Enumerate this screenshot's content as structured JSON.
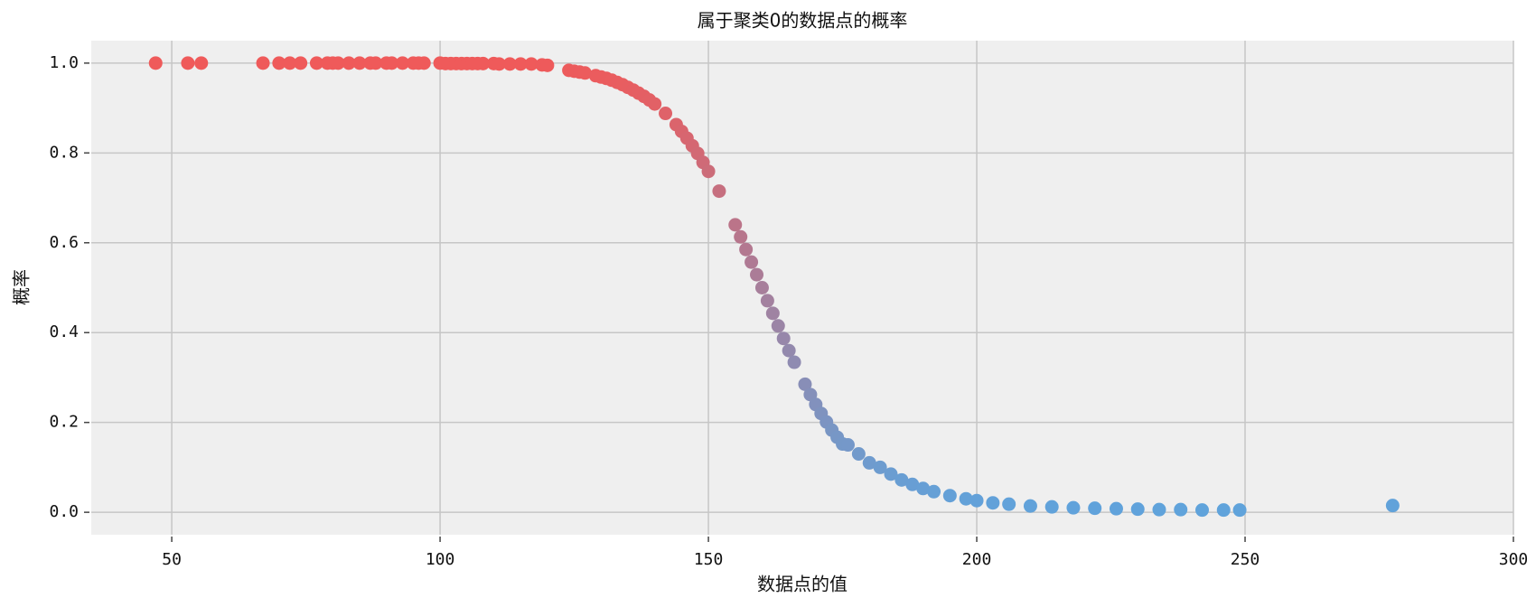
{
  "chart_data": {
    "type": "scatter",
    "title": "属于聚类0的数据点的概率",
    "xlabel": "数据点的值",
    "ylabel": "概率",
    "x": [
      47,
      53,
      55.5,
      67,
      70,
      72,
      74,
      77,
      79,
      80,
      81,
      83,
      85,
      87,
      88,
      90,
      91,
      93,
      95,
      96,
      97,
      100,
      101,
      102,
      103,
      104,
      105,
      106,
      107,
      108,
      110,
      111,
      113,
      115,
      117,
      119,
      120,
      124,
      125,
      126,
      127,
      129,
      130,
      131,
      132,
      133,
      134,
      135,
      136,
      137,
      138,
      139,
      140,
      142,
      144,
      145,
      146,
      147,
      148,
      149,
      150,
      152,
      155,
      156,
      157,
      158,
      159,
      160,
      161,
      162,
      163,
      164,
      165,
      166,
      168,
      169,
      170,
      171,
      172,
      173,
      174,
      175,
      176,
      178,
      180,
      182,
      184,
      186,
      188,
      190,
      192,
      195,
      198,
      200,
      203,
      206,
      210,
      214,
      218,
      222,
      226,
      230,
      234,
      238,
      242,
      246,
      249,
      277.5
    ],
    "values": [
      1.0,
      1.0,
      1.0,
      1.0,
      1.0,
      1.0,
      1.0,
      1.0,
      1.0,
      1.0,
      1.0,
      1.0,
      1.0,
      1.0,
      1.0,
      1.0,
      1.0,
      1.0,
      1.0,
      1.0,
      1.0,
      1.0,
      0.999,
      0.999,
      0.999,
      0.999,
      0.999,
      0.999,
      0.999,
      0.999,
      0.999,
      0.998,
      0.998,
      0.998,
      0.998,
      0.996,
      0.995,
      0.984,
      0.982,
      0.98,
      0.978,
      0.972,
      0.969,
      0.966,
      0.962,
      0.957,
      0.952,
      0.946,
      0.94,
      0.933,
      0.926,
      0.918,
      0.909,
      0.888,
      0.863,
      0.848,
      0.833,
      0.816,
      0.799,
      0.779,
      0.759,
      0.715,
      0.64,
      0.613,
      0.585,
      0.557,
      0.529,
      0.5,
      0.471,
      0.443,
      0.415,
      0.387,
      0.36,
      0.334,
      0.285,
      0.262,
      0.24,
      0.22,
      0.201,
      0.183,
      0.167,
      0.152,
      0.15,
      0.13,
      0.11,
      0.1,
      0.085,
      0.072,
      0.062,
      0.053,
      0.046,
      0.037,
      0.03,
      0.026,
      0.021,
      0.018,
      0.014,
      0.012,
      0.01,
      0.009,
      0.008,
      0.007,
      0.006,
      0.006,
      0.005,
      0.005,
      0.005,
      0.015
    ],
    "color_low": "#5fa3dc",
    "color_high": "#ef5a5a",
    "xlim": [
      35,
      300
    ],
    "xticks": [
      50,
      100,
      150,
      200,
      250,
      300
    ],
    "ylim": [
      -0.05,
      1.05
    ],
    "yticks": [
      {
        "value": 0,
        "label": "0.0"
      },
      0.2,
      0.4,
      0.6,
      0.8,
      {
        "value": 1,
        "label": "1.0"
      }
    ],
    "grid": true
  }
}
